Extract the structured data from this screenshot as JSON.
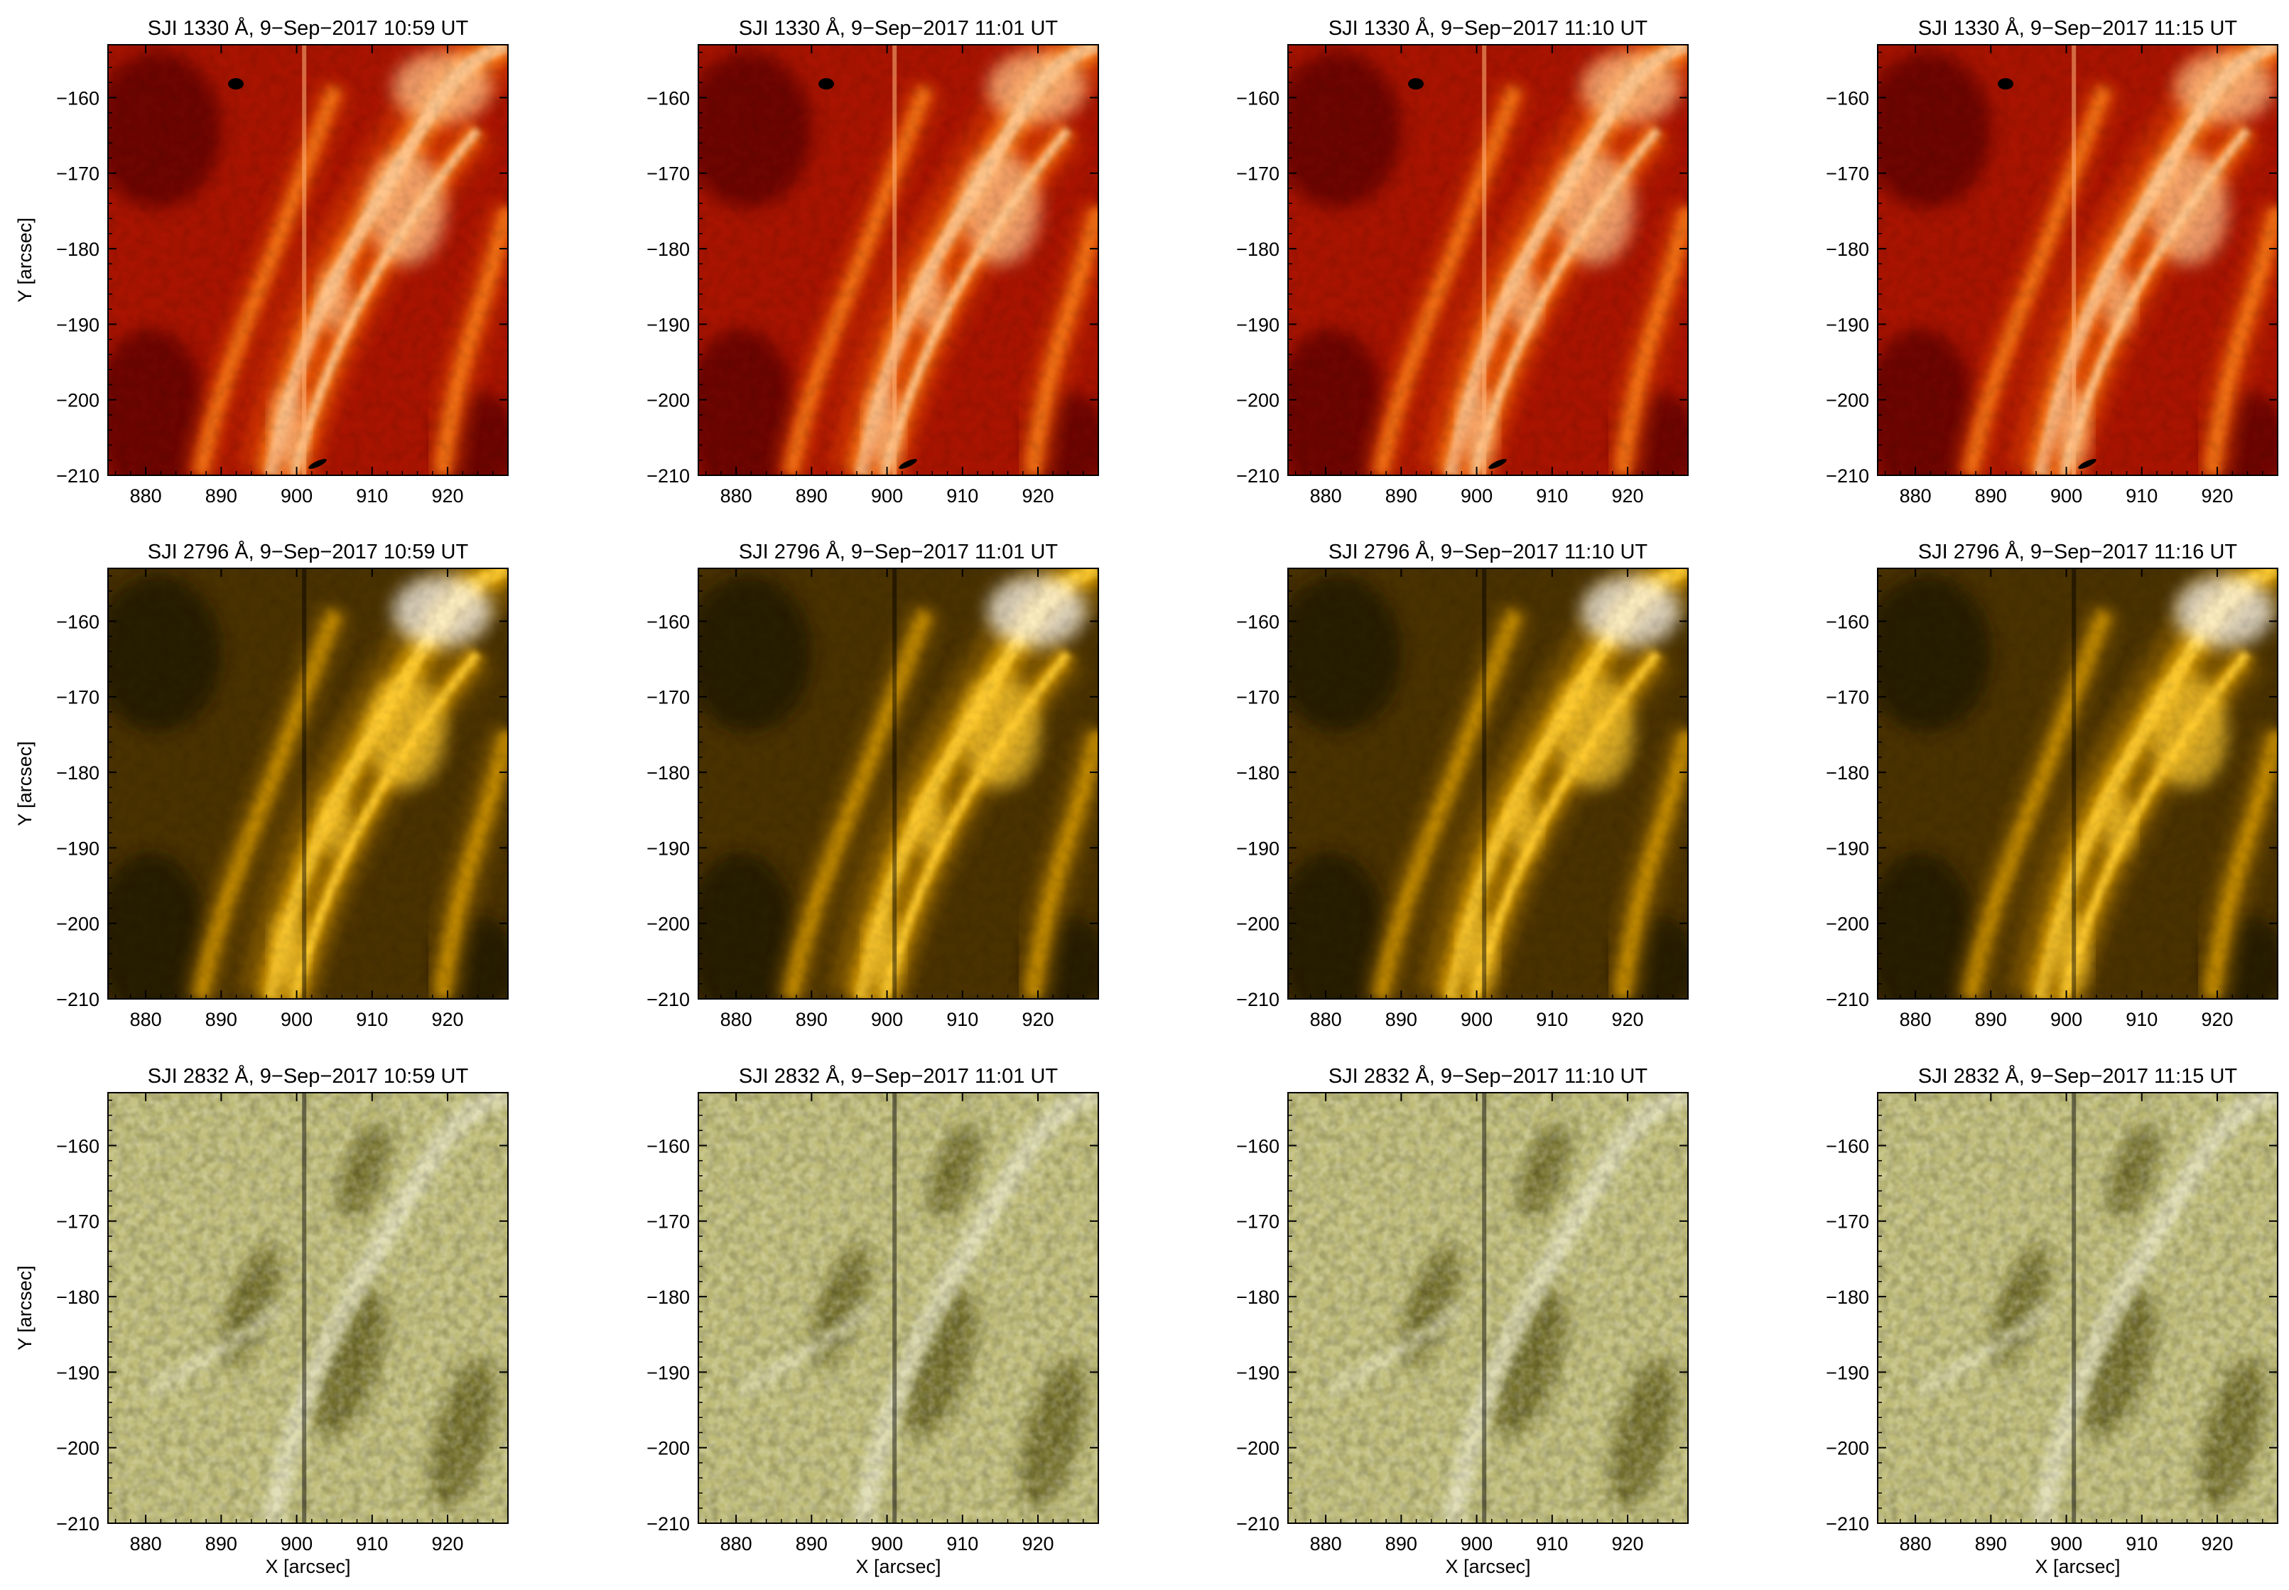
{
  "figure": {
    "x_axis_label": "X [arcsec]",
    "y_axis_label": "Y [arcsec]",
    "x_ticks": [
      "880",
      "890",
      "900",
      "910",
      "920"
    ],
    "y_ticks": [
      "−160",
      "−170",
      "−180",
      "−190",
      "−200",
      "−210"
    ],
    "rows": [
      {
        "channel": "SJI 1330 Å",
        "colormap": "red-orange",
        "colors": [
          "#5a0400",
          "#a81400",
          "#d43a00",
          "#f57818",
          "#ffc890",
          "#ffffff"
        ],
        "titles": [
          "SJI 1330 Å, 9−Sep−2017 10:59 UT",
          "SJI 1330 Å, 9−Sep−2017 11:01 UT",
          "SJI 1330 Å, 9−Sep−2017 11:10 UT",
          "SJI 1330 Å, 9−Sep−2017 11:15 UT"
        ]
      },
      {
        "channel": "SJI 2796 Å",
        "colormap": "dark-gold",
        "colors": [
          "#1f1500",
          "#4a3200",
          "#8a5e00",
          "#c99000",
          "#ffcc33",
          "#ffffff"
        ],
        "titles": [
          "SJI 2796 Å, 9−Sep−2017 10:59 UT",
          "SJI 2796 Å, 9−Sep−2017 11:01 UT",
          "SJI 2796 Å, 9−Sep−2017 11:10 UT",
          "SJI 2796 Å, 9−Sep−2017 11:16 UT"
        ]
      },
      {
        "channel": "SJI 2832 Å",
        "colormap": "olive",
        "colors": [
          "#3b3a08",
          "#6a6620",
          "#9c9848",
          "#bfbc78",
          "#e3e2bc",
          "#ffffff"
        ],
        "titles": [
          "SJI 2832 Å, 9−Sep−2017 10:59 UT",
          "SJI 2832 Å, 9−Sep−2017 11:01 UT",
          "SJI 2832 Å, 9−Sep−2017 11:10 UT",
          "SJI 2832 Å, 9−Sep−2017 11:15 UT"
        ]
      }
    ]
  }
}
